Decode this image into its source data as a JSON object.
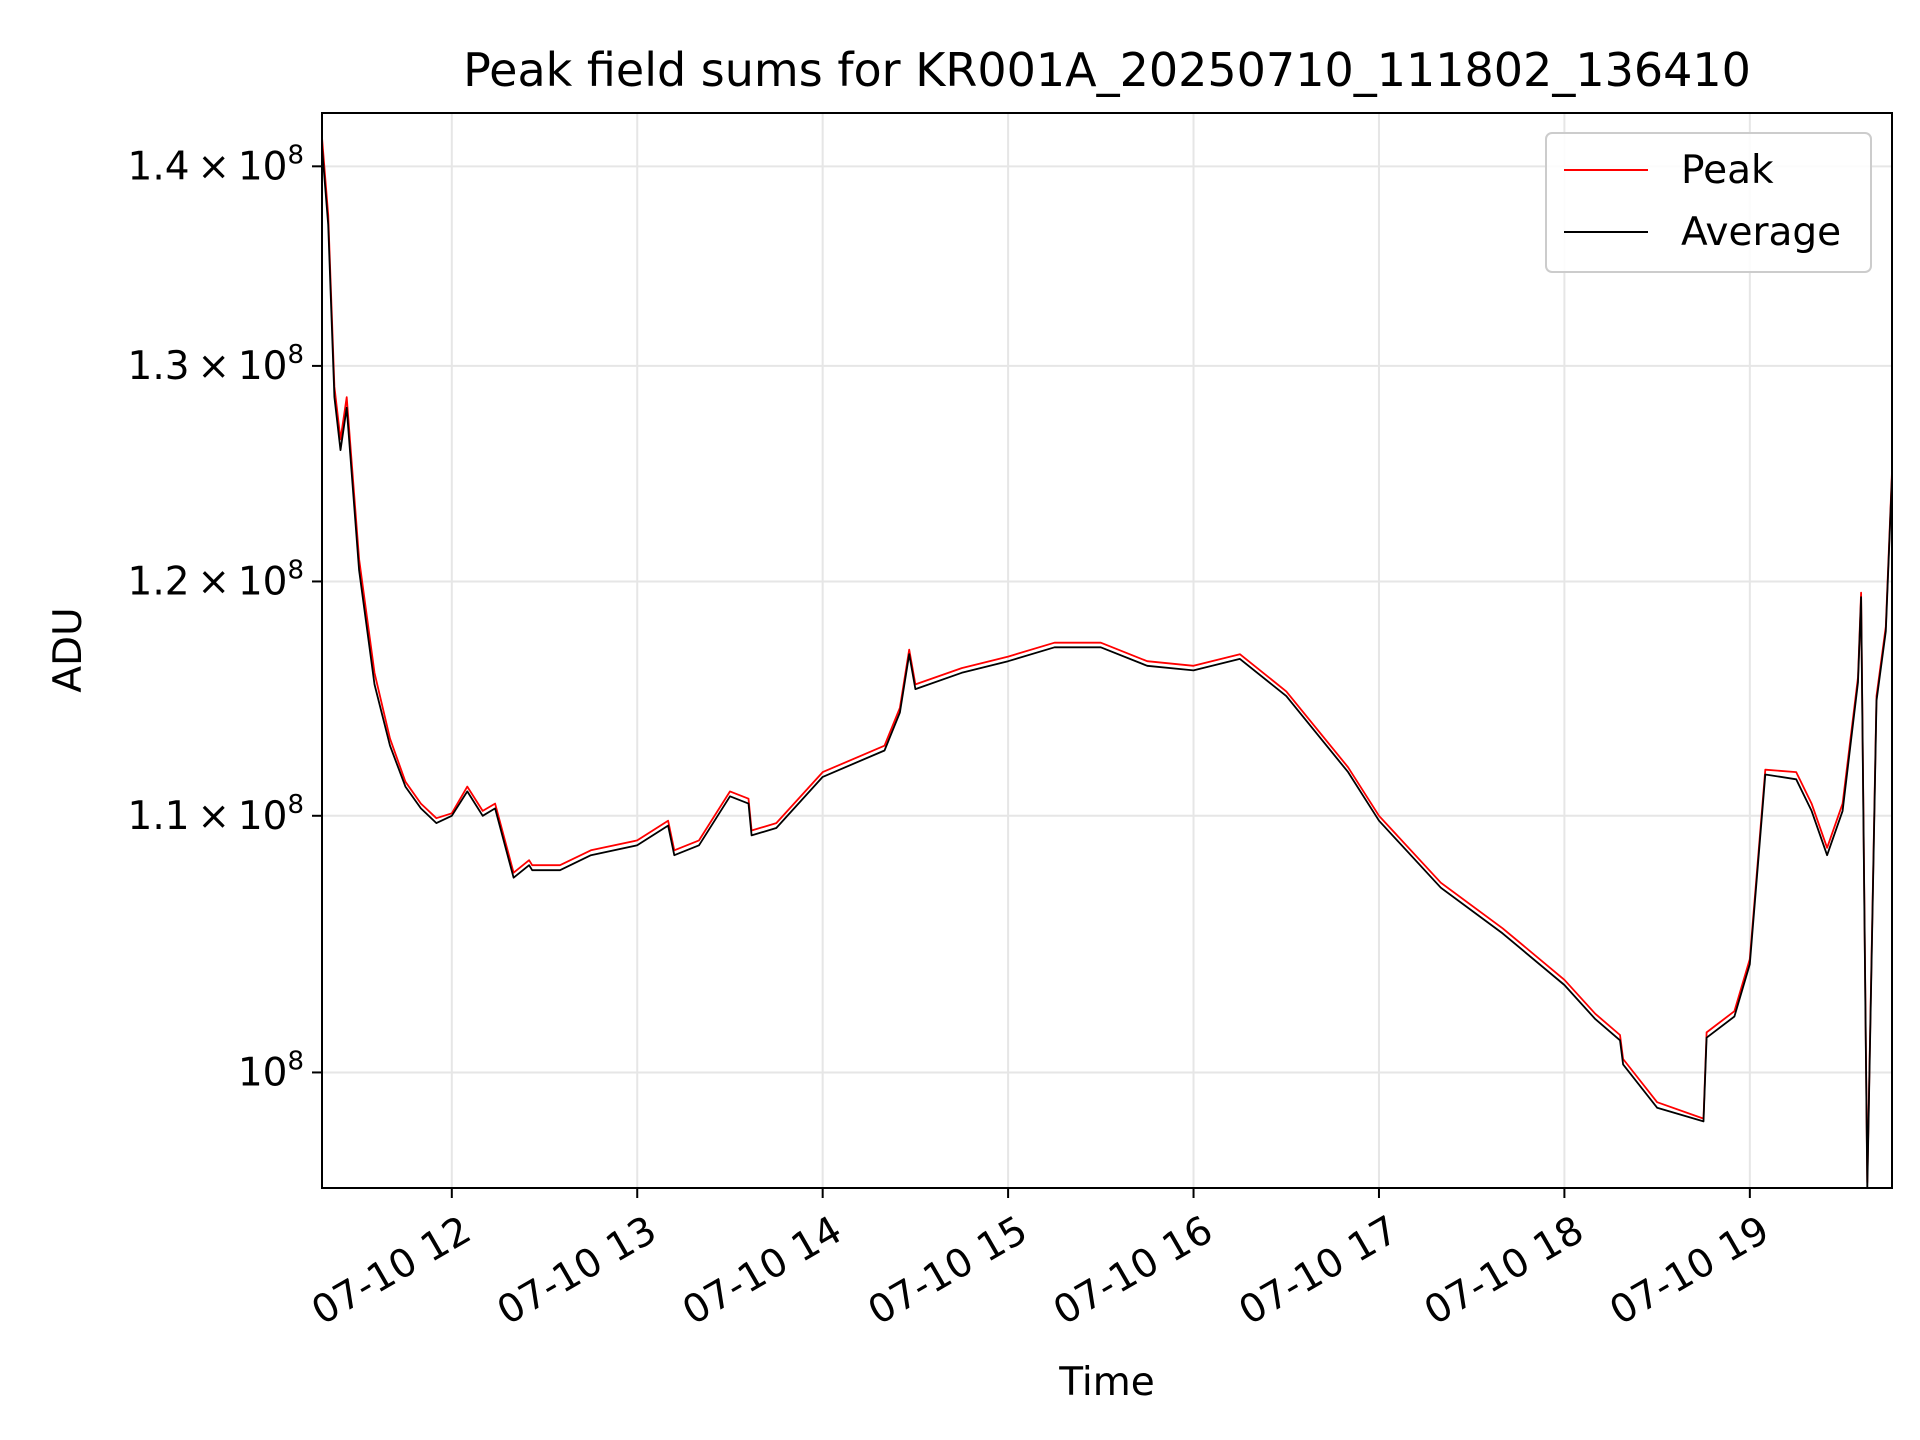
{
  "chart_data": {
    "type": "line",
    "title": "Peak field sums for KR001A_20250710_111802_136410",
    "xlabel": "Time",
    "ylabel": "ADU",
    "yscale": "log",
    "ylim": [
      95800000,
      142800000
    ],
    "xlim": [
      "07-10 11:18",
      "07-10 19:46"
    ],
    "grid": true,
    "legend_position": "top-right",
    "x_ticks": [
      "07-10 12",
      "07-10 13",
      "07-10 14",
      "07-10 15",
      "07-10 16",
      "07-10 17",
      "07-10 18",
      "07-10 19"
    ],
    "y_ticks": [
      {
        "value": 100000000,
        "mantissa": "",
        "exp": "8"
      },
      {
        "value": 110000000,
        "mantissa": "1.1",
        "exp": "8"
      },
      {
        "value": 120000000,
        "mantissa": "1.2",
        "exp": "8"
      },
      {
        "value": 130000000,
        "mantissa": "1.3",
        "exp": "8"
      },
      {
        "value": 140000000,
        "mantissa": "1.4",
        "exp": "8"
      }
    ],
    "x": [
      "07-10 11:18",
      "07-10 11:20",
      "07-10 11:22",
      "07-10 11:24",
      "07-10 11:26",
      "07-10 11:30",
      "07-10 11:35",
      "07-10 11:40",
      "07-10 11:45",
      "07-10 11:50",
      "07-10 11:55",
      "07-10 12:00",
      "07-10 12:05",
      "07-10 12:10",
      "07-10 12:14",
      "07-10 12:20",
      "07-10 12:25",
      "07-10 12:26",
      "07-10 12:35",
      "07-10 12:45",
      "07-10 13:00",
      "07-10 13:10",
      "07-10 13:12",
      "07-10 13:20",
      "07-10 13:30",
      "07-10 13:36",
      "07-10 13:37",
      "07-10 13:45",
      "07-10 14:00",
      "07-10 14:20",
      "07-10 14:25",
      "07-10 14:28",
      "07-10 14:30",
      "07-10 14:45",
      "07-10 15:00",
      "07-10 15:15",
      "07-10 15:30",
      "07-10 15:45",
      "07-10 16:00",
      "07-10 16:15",
      "07-10 16:30",
      "07-10 16:50",
      "07-10 17:00",
      "07-10 17:20",
      "07-10 17:40",
      "07-10 18:00",
      "07-10 18:10",
      "07-10 18:18",
      "07-10 18:19",
      "07-10 18:30",
      "07-10 18:45",
      "07-10 18:46",
      "07-10 18:55",
      "07-10 19:00",
      "07-10 19:05",
      "07-10 19:15",
      "07-10 19:20",
      "07-10 19:25",
      "07-10 19:30",
      "07-10 19:35",
      "07-10 19:36",
      "07-10 19:38",
      "07-10 19:41",
      "07-10 19:44",
      "07-10 19:46"
    ],
    "series": [
      {
        "name": "Peak",
        "color": "#ff0000",
        "values": [
          141500000,
          137500000,
          129000000,
          126500000,
          128500000,
          121000000,
          116000000,
          113200000,
          111400000,
          110500000,
          109900000,
          110100000,
          111200000,
          110200000,
          110500000,
          107700000,
          108200000,
          108000000,
          108000000,
          108600000,
          109000000,
          109800000,
          108600000,
          109000000,
          111000000,
          110700000,
          109400000,
          109700000,
          111800000,
          112900000,
          114500000,
          117000000,
          115500000,
          116200000,
          116700000,
          117300000,
          117300000,
          116500000,
          116300000,
          116800000,
          115200000,
          112000000,
          110000000,
          107300000,
          105500000,
          103500000,
          102200000,
          101400000,
          100500000,
          98900000,
          98300000,
          101500000,
          102300000,
          104300000,
          111900000,
          111800000,
          110500000,
          108700000,
          110500000,
          115800000,
          119500000,
          96000000,
          115000000,
          118000000,
          125000000
        ]
      },
      {
        "name": "Average",
        "color": "#000000",
        "values": [
          141000000,
          137000000,
          128500000,
          126000000,
          128000000,
          120500000,
          115500000,
          112900000,
          111200000,
          110300000,
          109700000,
          110000000,
          111000000,
          110000000,
          110300000,
          107500000,
          108000000,
          107800000,
          107800000,
          108400000,
          108800000,
          109600000,
          108400000,
          108800000,
          110800000,
          110500000,
          109200000,
          109500000,
          111600000,
          112700000,
          114300000,
          116800000,
          115300000,
          116000000,
          116500000,
          117100000,
          117100000,
          116300000,
          116100000,
          116600000,
          115000000,
          111800000,
          109800000,
          107100000,
          105300000,
          103300000,
          102000000,
          101200000,
          100300000,
          98700000,
          98200000,
          101300000,
          102100000,
          104100000,
          111700000,
          111500000,
          110200000,
          108400000,
          110200000,
          115600000,
          119300000,
          95800000,
          114800000,
          117800000,
          124800000
        ]
      }
    ]
  }
}
